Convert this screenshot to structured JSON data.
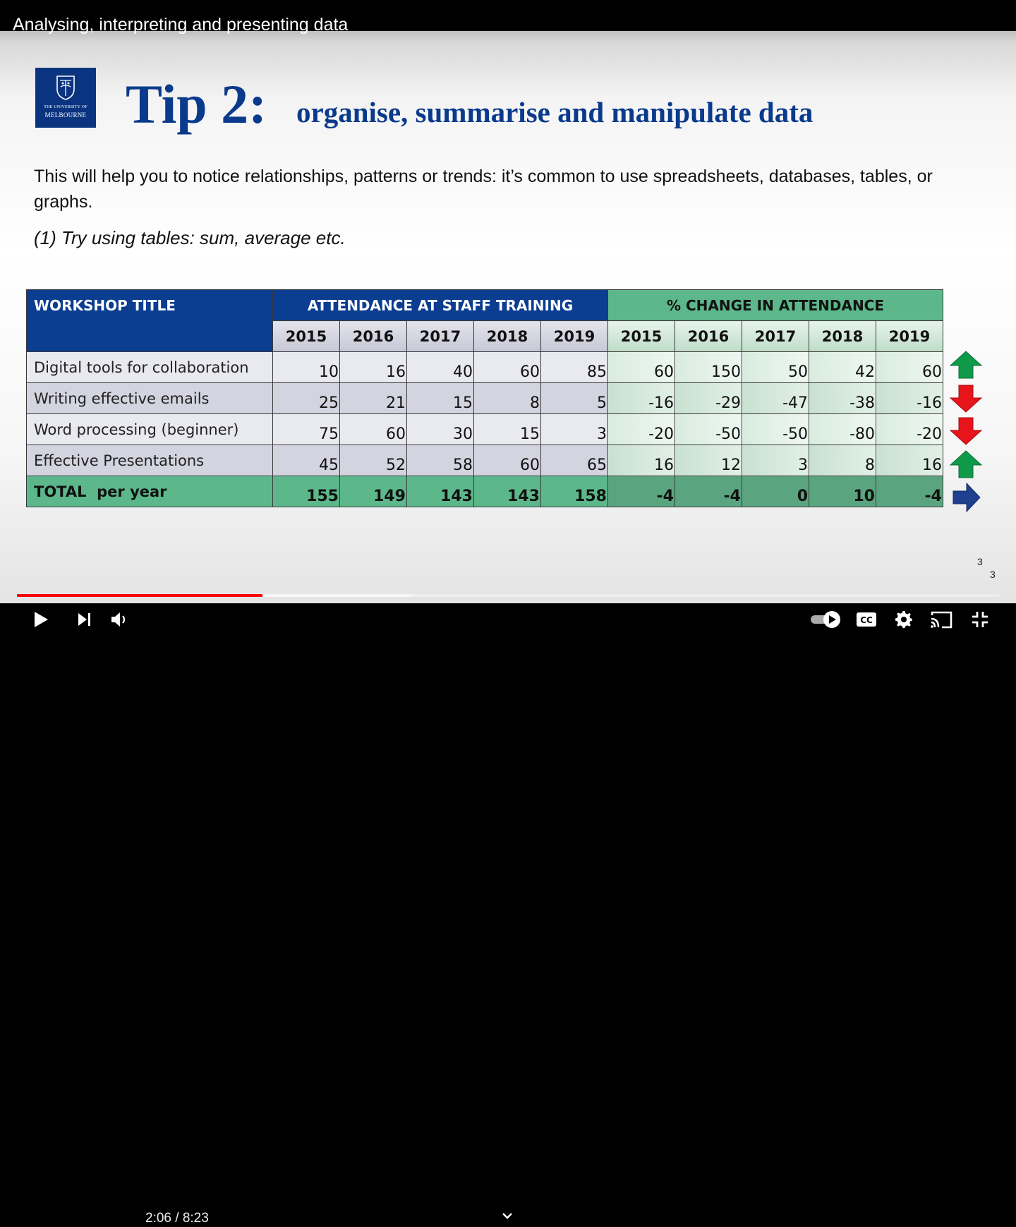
{
  "video": {
    "title": "Analysing, interpreting and presenting data",
    "current_time": "2:06",
    "duration": "8:23",
    "time_display": "2:06 / 8:23",
    "progress_fraction": 0.25,
    "buffered_fraction": 0.402
  },
  "slide": {
    "logo": {
      "line1": "THE UNIVERSITY OF",
      "line2": "MELBOURNE"
    },
    "heading": "Tip 2:",
    "subheading": "organise, summarise and manipulate data",
    "intro": "This will help you to notice relationships, patterns or trends: it’s common to use spreadsheets, databases, tables, or graphs.",
    "tip_line": "(1) Try using tables: sum, average etc.",
    "page_number_a": "3",
    "page_number_b": "3",
    "table": {
      "title_header": "WORKSHOP TITLE",
      "attendance_header": "ATTENDANCE AT STAFF TRAINING",
      "change_header": "% CHANGE IN ATTENDANCE",
      "years": [
        "2015",
        "2016",
        "2017",
        "2018",
        "2019"
      ],
      "rows": [
        {
          "label": "Digital tools for collaboration",
          "att": [
            "10",
            "16",
            "40",
            "60",
            "85"
          ],
          "chg": [
            "60",
            "150",
            "50",
            "42",
            "60"
          ],
          "trend": "up"
        },
        {
          "label": "Writing effective emails",
          "att": [
            "25",
            "21",
            "15",
            "8",
            "5"
          ],
          "chg": [
            "-16",
            "-29",
            "-47",
            "-38",
            "-16"
          ],
          "trend": "down"
        },
        {
          "label": "Word processing (beginner)",
          "att": [
            "75",
            "60",
            "30",
            "15",
            "3"
          ],
          "chg": [
            "-20",
            "-50",
            "-50",
            "-80",
            "-20"
          ],
          "trend": "down"
        },
        {
          "label": "Effective Presentations",
          "att": [
            "45",
            "52",
            "58",
            "60",
            "65"
          ],
          "chg": [
            "16",
            "12",
            "3",
            "8",
            "16"
          ],
          "trend": "up"
        }
      ],
      "total": {
        "label": "TOTAL  per year",
        "att": [
          "155",
          "149",
          "143",
          "143",
          "158"
        ],
        "chg": [
          "-4",
          "-4",
          "0",
          "10",
          "-4"
        ],
        "trend": "flat"
      }
    }
  },
  "colors": {
    "brand_blue": "#0b3d91",
    "header_green": "#5cb88a",
    "up_arrow": "#0f9a4a",
    "down_arrow": "#e8141c",
    "flat_arrow": "#1f3f8f",
    "progress_red": "#ff0000"
  },
  "controls": {
    "icons": [
      "play-icon",
      "next-icon",
      "volume-icon",
      "chevron-down-icon",
      "autoplay-toggle-icon",
      "subtitles-icon",
      "settings-icon",
      "cast-icon",
      "exit-fullscreen-icon"
    ]
  }
}
